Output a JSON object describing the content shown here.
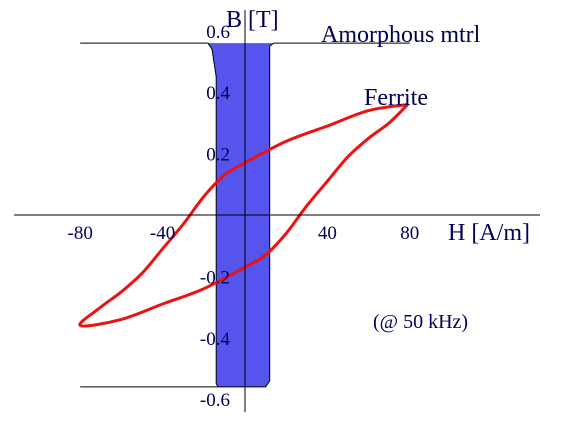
{
  "chart_data": {
    "type": "line",
    "xlabel": "H [A/m]",
    "ylabel": "B [T]",
    "xlim": [
      -120,
      150
    ],
    "ylim": [
      -0.65,
      0.65
    ],
    "x_ticks": [
      "-80",
      "-40",
      "40",
      "80"
    ],
    "y_ticks": [
      "0.6",
      "0.4",
      "0.2",
      "-0.2",
      "-0.4",
      "-0.6"
    ],
    "x_tick_values": [
      -80,
      -40,
      40,
      80
    ],
    "y_tick_values": [
      0.6,
      0.4,
      0.2,
      -0.2,
      -0.4,
      -0.6
    ],
    "annotations": [
      "Amorphous mtrl",
      "Ferrite",
      "(@ 50 kHz)"
    ],
    "series": [
      {
        "name": "Amorphous mtrl",
        "color": "#3333ee",
        "fill": "#5555ee",
        "upper": [
          [
            -80,
            0.56
          ],
          [
            -18,
            0.56
          ],
          [
            -16,
            0.54
          ],
          [
            -14,
            0.45
          ],
          [
            -14,
            -0.55
          ],
          [
            -13,
            -0.56
          ]
        ],
        "lower": [
          [
            -80,
            -0.56
          ],
          [
            -5,
            -0.56
          ],
          [
            10,
            -0.56
          ],
          [
            12,
            -0.54
          ],
          [
            12,
            -0.45
          ],
          [
            12,
            0.55
          ],
          [
            14,
            0.56
          ],
          [
            80,
            0.56
          ]
        ]
      },
      {
        "name": "Ferrite",
        "color": "#ee1111",
        "points": [
          [
            79,
            0.36
          ],
          [
            60,
            0.34
          ],
          [
            40,
            0.29
          ],
          [
            20,
            0.24
          ],
          [
            0,
            0.17
          ],
          [
            -10,
            0.13
          ],
          [
            -20,
            0.06
          ],
          [
            -30,
            -0.03
          ],
          [
            -40,
            -0.11
          ],
          [
            -50,
            -0.19
          ],
          [
            -60,
            -0.25
          ],
          [
            -70,
            -0.3
          ],
          [
            -80,
            -0.36
          ],
          [
            -60,
            -0.34
          ],
          [
            -40,
            -0.29
          ],
          [
            -20,
            -0.24
          ],
          [
            0,
            -0.17
          ],
          [
            10,
            -0.13
          ],
          [
            20,
            -0.06
          ],
          [
            30,
            0.03
          ],
          [
            40,
            0.11
          ],
          [
            50,
            0.19
          ],
          [
            60,
            0.25
          ],
          [
            70,
            0.3
          ],
          [
            79,
            0.36
          ]
        ]
      }
    ]
  }
}
